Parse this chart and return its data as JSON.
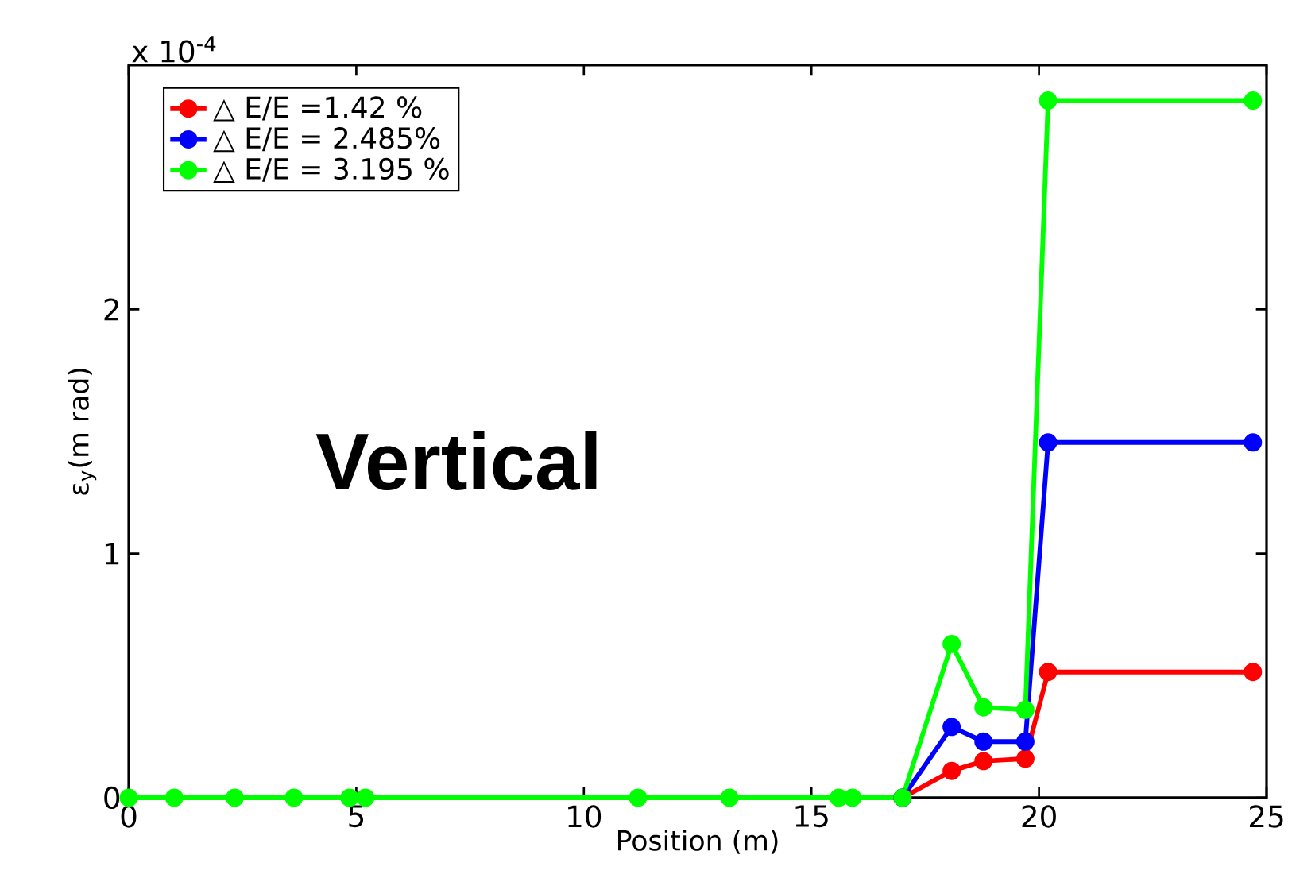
{
  "chart_data": {
    "type": "line",
    "xlabel": "Position (m)",
    "ylabel": "ε$_{y}$(m rad)",
    "x": [
      0,
      1,
      2.33,
      3.63,
      4.85,
      5.2,
      11.19,
      13.2,
      15.6,
      15.9,
      17.0,
      18.08,
      18.78,
      19.7,
      20.2,
      24.7
    ],
    "series": [
      {
        "name": "△ E/E =1.42 %",
        "color": "#ff0000",
        "values": [
          null,
          null,
          null,
          null,
          null,
          null,
          null,
          null,
          null,
          null,
          0,
          0.11,
          0.15,
          0.16,
          0.515,
          0.515
        ]
      },
      {
        "name": "△ E/E = 2.485%",
        "color": "#0000ff",
        "values": [
          null,
          null,
          null,
          null,
          null,
          null,
          null,
          null,
          null,
          null,
          0,
          0.29,
          0.23,
          0.23,
          1.455,
          1.455
        ]
      },
      {
        "name": "△ E/E = 3.195 %",
        "color": "#00ff00",
        "values": [
          0,
          0,
          0,
          0,
          0,
          0,
          0,
          0,
          0,
          0,
          0,
          0.63,
          0.37,
          0.36,
          2.855,
          2.855
        ]
      }
    ],
    "xlim": [
      0,
      25
    ],
    "ylim": [
      0,
      3
    ],
    "xticks": [
      0,
      5,
      10,
      15,
      20,
      25
    ],
    "yticks": [
      0,
      1,
      2
    ],
    "annotations": [
      "x 10$^{-4}$",
      "Vertical"
    ],
    "legend": "top left",
    "marker": "circle",
    "line_style": "solid"
  }
}
